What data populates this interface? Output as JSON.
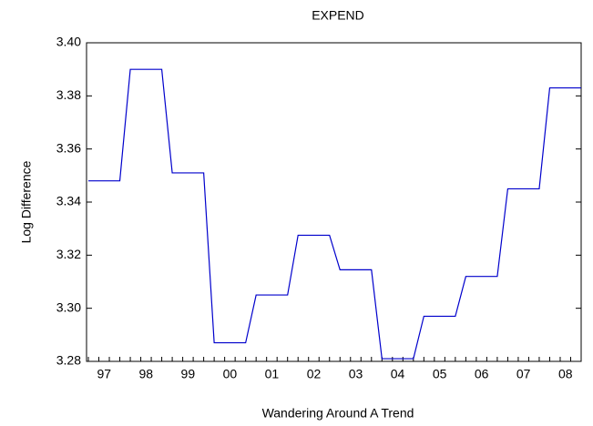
{
  "chart_data": {
    "type": "line",
    "title": "EXPEND",
    "x_label": "Wandering Around A Trend",
    "y_label": "Log Difference",
    "categories": [
      null,
      null,
      "97",
      null,
      null,
      null,
      "98",
      null,
      null,
      null,
      "99",
      null,
      null,
      null,
      "00",
      null,
      null,
      null,
      "01",
      null,
      null,
      null,
      "02",
      null,
      null,
      null,
      "03",
      null,
      null,
      null,
      "04",
      null,
      null,
      null,
      "05",
      null,
      null,
      null,
      "06",
      null,
      null,
      null,
      "07",
      null,
      null,
      null,
      "08",
      null
    ],
    "series": [
      {
        "name": "EXPEND",
        "color": "#0000cc",
        "values": [
          3.348,
          3.348,
          3.348,
          3.348,
          3.39,
          3.39,
          3.39,
          3.39,
          3.351,
          3.351,
          3.351,
          3.351,
          3.287,
          3.287,
          3.287,
          3.287,
          3.305,
          3.305,
          3.305,
          3.305,
          3.3275,
          3.3275,
          3.3275,
          3.3275,
          3.3145,
          3.3145,
          3.3145,
          3.3145,
          3.281,
          3.281,
          3.281,
          3.281,
          3.297,
          3.297,
          3.297,
          3.297,
          3.312,
          3.312,
          3.312,
          3.312,
          3.345,
          3.345,
          3.345,
          3.345,
          3.383,
          3.383,
          3.383,
          3.383
        ]
      }
    ],
    "ylim": [
      3.28,
      3.4
    ],
    "yticks": [
      3.28,
      {
        "value": 3.3,
        "label": "3.30"
      },
      3.32,
      3.34,
      3.36,
      3.38,
      {
        "value": 3.4,
        "label": "3.40"
      }
    ],
    "grid": false
  }
}
